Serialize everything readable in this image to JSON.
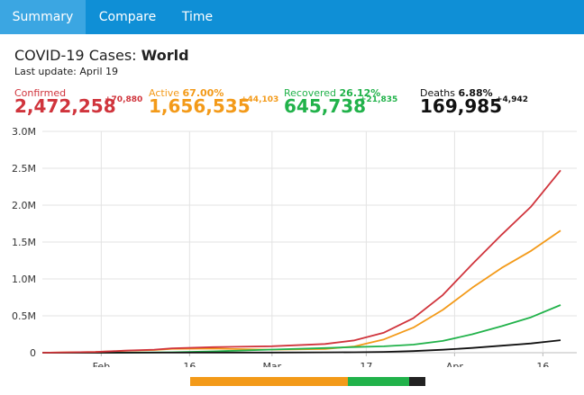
{
  "tabs": [
    {
      "label": "Summary",
      "active": true
    },
    {
      "label": "Compare",
      "active": false
    },
    {
      "label": "Time",
      "active": false
    }
  ],
  "header": {
    "title_prefix": "COVID-19 Cases: ",
    "title_region": "World",
    "last_update": "Last update: April 19"
  },
  "stats": {
    "confirmed": {
      "label": "Confirmed",
      "percent": "",
      "value": "2,472,258",
      "delta": "+70,880",
      "color": "#d0343c"
    },
    "active": {
      "label": "Active",
      "percent": "67.00%",
      "value": "1,656,535",
      "delta": "+44,103",
      "color": "#f39a19"
    },
    "recovered": {
      "label": "Recovered",
      "percent": "26.12%",
      "value": "645,738",
      "delta": "+21,835",
      "color": "#21b24a"
    },
    "deaths": {
      "label": "Deaths",
      "percent": "6.88%",
      "value": "169,985",
      "delta": "+4,942",
      "color": "#111111"
    }
  },
  "chart_data": {
    "type": "line",
    "ylim": [
      0,
      3000000
    ],
    "y_ticks": [
      0,
      500000,
      1000000,
      1500000,
      2000000,
      2500000,
      3000000
    ],
    "y_tick_labels": [
      "0",
      "0.5M",
      "1.0M",
      "1.5M",
      "2.0M",
      "2.5M",
      "3.0M"
    ],
    "x_ticks": [
      {
        "date": "2020-02-01",
        "label": "Feb"
      },
      {
        "date": "2020-02-16",
        "label": "16"
      },
      {
        "date": "2020-03-01",
        "label": "Mar"
      },
      {
        "date": "2020-03-17",
        "label": "17"
      },
      {
        "date": "2020-04-01",
        "label": "Apr"
      },
      {
        "date": "2020-04-16",
        "label": "16"
      }
    ],
    "x_range": [
      "2020-01-22",
      "2020-04-19"
    ],
    "grid": true,
    "series": [
      {
        "key": "confirmed",
        "color": "#d0343c",
        "points": [
          [
            "2020-01-22",
            555
          ],
          [
            "2020-01-31",
            9900
          ],
          [
            "2020-02-05",
            28000
          ],
          [
            "2020-02-10",
            42000
          ],
          [
            "2020-02-13",
            60000
          ],
          [
            "2020-02-20",
            76000
          ],
          [
            "2020-03-01",
            88000
          ],
          [
            "2020-03-10",
            118000
          ],
          [
            "2020-03-15",
            167000
          ],
          [
            "2020-03-20",
            272000
          ],
          [
            "2020-03-25",
            467000
          ],
          [
            "2020-03-30",
            782000
          ],
          [
            "2020-04-04",
            1200000
          ],
          [
            "2020-04-09",
            1600000
          ],
          [
            "2020-04-14",
            1980000
          ],
          [
            "2020-04-19",
            2472258
          ]
        ]
      },
      {
        "key": "active",
        "color": "#f39a19",
        "points": [
          [
            "2020-01-22",
            510
          ],
          [
            "2020-01-31",
            9400
          ],
          [
            "2020-02-05",
            26000
          ],
          [
            "2020-02-10",
            37000
          ],
          [
            "2020-02-13",
            52000
          ],
          [
            "2020-02-20",
            56000
          ],
          [
            "2020-03-01",
            42000
          ],
          [
            "2020-03-10",
            50000
          ],
          [
            "2020-03-15",
            85000
          ],
          [
            "2020-03-20",
            180000
          ],
          [
            "2020-03-25",
            340000
          ],
          [
            "2020-03-30",
            580000
          ],
          [
            "2020-04-04",
            880000
          ],
          [
            "2020-04-09",
            1150000
          ],
          [
            "2020-04-14",
            1380000
          ],
          [
            "2020-04-19",
            1656535
          ]
        ]
      },
      {
        "key": "recovered",
        "color": "#21b24a",
        "points": [
          [
            "2020-01-22",
            28
          ],
          [
            "2020-01-31",
            200
          ],
          [
            "2020-02-05",
            1100
          ],
          [
            "2020-02-10",
            3900
          ],
          [
            "2020-02-13",
            6700
          ],
          [
            "2020-02-20",
            18000
          ],
          [
            "2020-03-01",
            43000
          ],
          [
            "2020-03-10",
            64000
          ],
          [
            "2020-03-15",
            77000
          ],
          [
            "2020-03-20",
            87000
          ],
          [
            "2020-03-25",
            110000
          ],
          [
            "2020-03-30",
            160000
          ],
          [
            "2020-04-04",
            250000
          ],
          [
            "2020-04-09",
            360000
          ],
          [
            "2020-04-14",
            480000
          ],
          [
            "2020-04-19",
            645738
          ]
        ]
      },
      {
        "key": "deaths",
        "color": "#111111",
        "points": [
          [
            "2020-01-22",
            17
          ],
          [
            "2020-01-31",
            210
          ],
          [
            "2020-02-05",
            560
          ],
          [
            "2020-02-10",
            1000
          ],
          [
            "2020-02-13",
            1400
          ],
          [
            "2020-02-20",
            2200
          ],
          [
            "2020-03-01",
            3000
          ],
          [
            "2020-03-10",
            4300
          ],
          [
            "2020-03-15",
            6400
          ],
          [
            "2020-03-20",
            11000
          ],
          [
            "2020-03-25",
            22000
          ],
          [
            "2020-03-30",
            40000
          ],
          [
            "2020-04-04",
            65000
          ],
          [
            "2020-04-09",
            95000
          ],
          [
            "2020-04-14",
            126000
          ],
          [
            "2020-04-19",
            169985
          ]
        ]
      }
    ]
  },
  "range_slider": {
    "segments": [
      {
        "key": "active",
        "fraction": 0.67,
        "color": "#f39a19"
      },
      {
        "key": "recovered",
        "fraction": 0.2612,
        "color": "#21b24a"
      },
      {
        "key": "deaths",
        "fraction": 0.0688,
        "color": "#222222"
      }
    ]
  }
}
